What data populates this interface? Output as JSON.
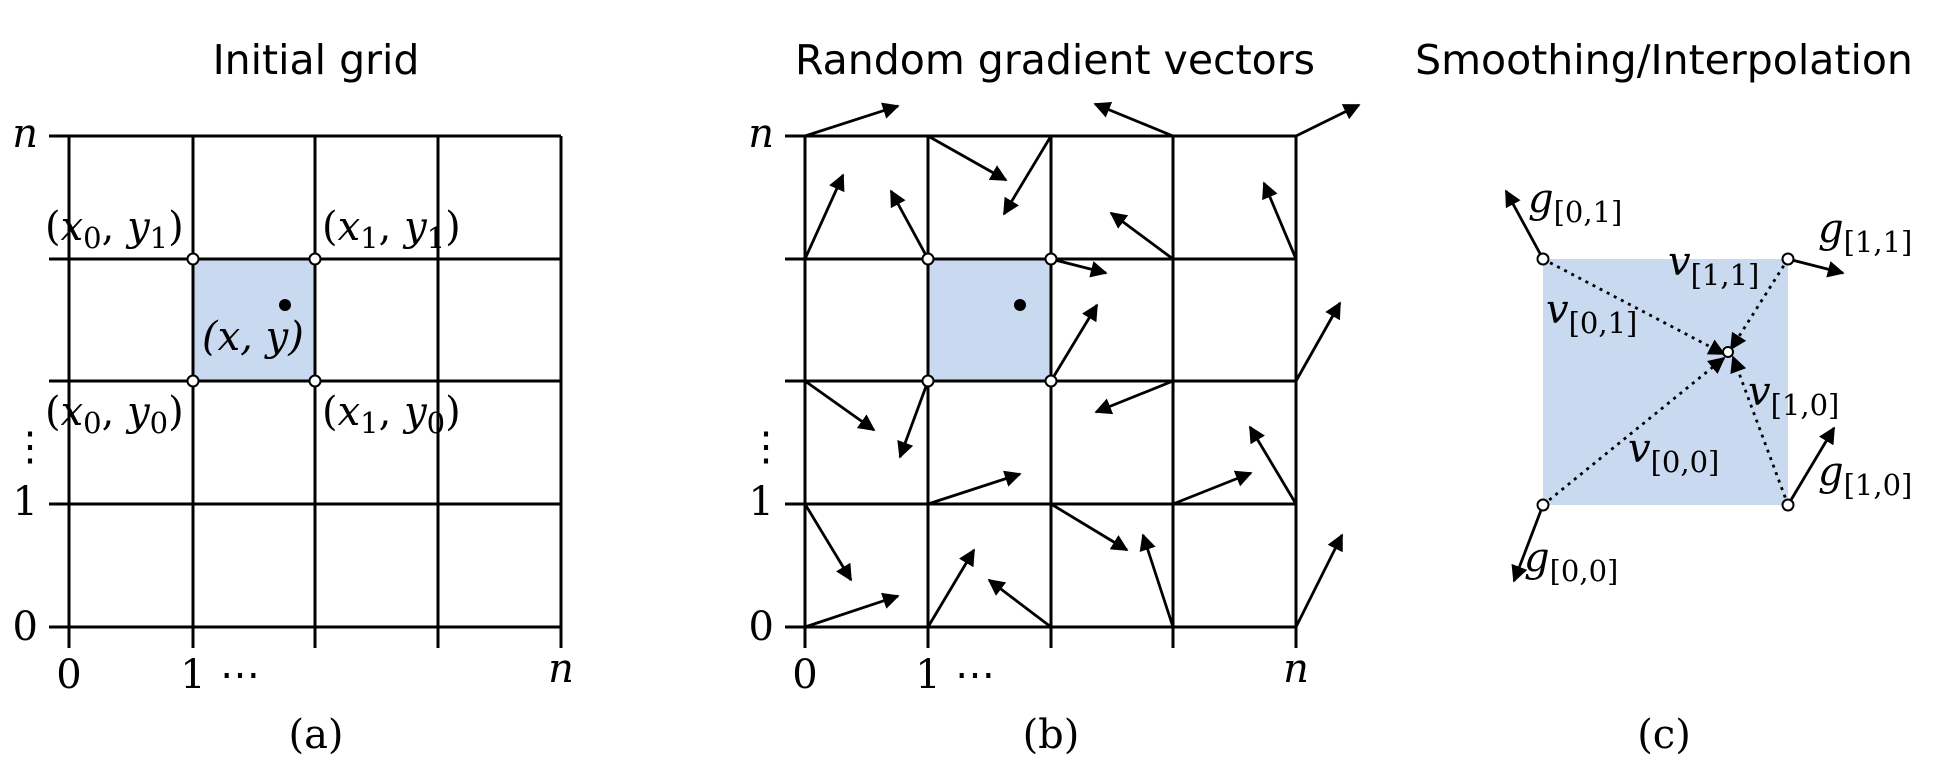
{
  "panels": {
    "a": {
      "title": "Initial grid",
      "caption": "(a)",
      "y_labels": {
        "top": "n",
        "one": "1",
        "zero": "0"
      },
      "x_labels": {
        "zero": "0",
        "one": "1",
        "ellipsis": "⋯",
        "right": "n"
      },
      "vertical_ellipsis": "⋮",
      "corner_labels": {
        "tl": [
          "(",
          "x",
          "0",
          ", ",
          "y",
          "1",
          ")"
        ],
        "tr": [
          "(",
          "x",
          "1",
          ", ",
          "y",
          "1",
          ")"
        ],
        "bl": [
          "(",
          "x",
          "0",
          ", ",
          "y",
          "0",
          ")"
        ],
        "br": [
          "(",
          "x",
          "1",
          ", ",
          "y",
          "0",
          ")"
        ]
      },
      "point_label": "(x, y)"
    },
    "b": {
      "title": "Random gradient vectors",
      "caption": "(b)",
      "y_labels": {
        "top": "n",
        "one": "1",
        "zero": "0"
      },
      "x_labels": {
        "zero": "0",
        "one": "1",
        "ellipsis": "⋯",
        "right": "n"
      },
      "vertical_ellipsis": "⋮"
    },
    "c": {
      "title": "Smoothing/Interpolation",
      "caption": "(c)",
      "gradients": {
        "g01": {
          "base": "g",
          "sub": "[0,1]"
        },
        "g11": {
          "base": "g",
          "sub": "[1,1]"
        },
        "g10": {
          "base": "g",
          "sub": "[1,0]"
        },
        "g00": {
          "base": "g",
          "sub": "[0,0]"
        }
      },
      "distances": {
        "v01": {
          "base": "v",
          "sub": "[0,1]"
        },
        "v11": {
          "base": "v",
          "sub": "[1,1]"
        },
        "v10": {
          "base": "v",
          "sub": "[1,0]"
        },
        "v00": {
          "base": "v",
          "sub": "[0,0]"
        }
      }
    }
  },
  "colors": {
    "cell_fill": "#c9d9ef",
    "line": "#000000",
    "node_fill": "#ffffff"
  }
}
